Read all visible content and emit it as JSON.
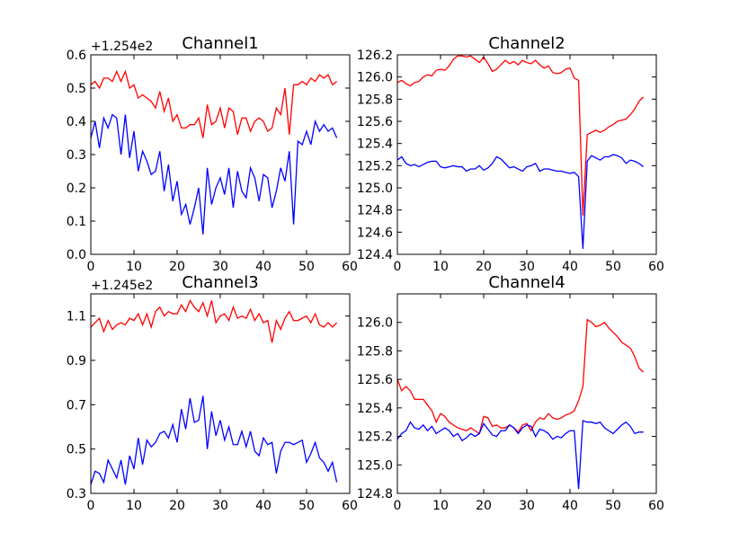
{
  "chart_data": [
    {
      "type": "line",
      "title": "Channel1",
      "offset_label": "+1.254e2",
      "xlim": [
        0,
        60
      ],
      "ylim": [
        0.0,
        0.6
      ],
      "xticks": [
        0,
        10,
        20,
        30,
        40,
        50,
        60
      ],
      "yticks": [
        0.0,
        0.1,
        0.2,
        0.3,
        0.4,
        0.5,
        0.6
      ],
      "ytick_labels": [
        "0.0",
        "0.1",
        "0.2",
        "0.3",
        "0.4",
        "0.5",
        "0.6"
      ],
      "series": [
        {
          "color": "#ff0000",
          "values": [
            0.51,
            0.52,
            0.5,
            0.53,
            0.53,
            0.52,
            0.55,
            0.52,
            0.55,
            0.5,
            0.51,
            0.47,
            0.48,
            0.47,
            0.46,
            0.44,
            0.49,
            0.43,
            0.47,
            0.4,
            0.42,
            0.38,
            0.38,
            0.39,
            0.39,
            0.41,
            0.35,
            0.45,
            0.39,
            0.4,
            0.44,
            0.38,
            0.44,
            0.43,
            0.36,
            0.41,
            0.41,
            0.37,
            0.4,
            0.41,
            0.4,
            0.37,
            0.38,
            0.44,
            0.42,
            0.5,
            0.36,
            0.51,
            0.51,
            0.52,
            0.51,
            0.53,
            0.52,
            0.54,
            0.53,
            0.54,
            0.51,
            0.52
          ]
        },
        {
          "color": "#0000ff",
          "values": [
            0.35,
            0.4,
            0.32,
            0.41,
            0.38,
            0.42,
            0.41,
            0.3,
            0.42,
            0.29,
            0.37,
            0.25,
            0.31,
            0.28,
            0.24,
            0.25,
            0.31,
            0.19,
            0.27,
            0.16,
            0.22,
            0.12,
            0.15,
            0.09,
            0.14,
            0.2,
            0.06,
            0.26,
            0.15,
            0.2,
            0.23,
            0.18,
            0.26,
            0.14,
            0.25,
            0.19,
            0.17,
            0.26,
            0.23,
            0.16,
            0.24,
            0.23,
            0.14,
            0.19,
            0.26,
            0.22,
            0.31,
            0.09,
            0.34,
            0.33,
            0.37,
            0.33,
            0.4,
            0.37,
            0.39,
            0.37,
            0.38,
            0.35
          ]
        }
      ]
    },
    {
      "type": "line",
      "title": "Channel2",
      "offset_label": "",
      "xlim": [
        0,
        60
      ],
      "ylim": [
        124.4,
        126.2
      ],
      "xticks": [
        0,
        10,
        20,
        30,
        40,
        50,
        60
      ],
      "yticks": [
        124.4,
        124.6,
        124.8,
        125.0,
        125.2,
        125.4,
        125.6,
        125.8,
        126.0,
        126.2
      ],
      "ytick_labels": [
        "124.4",
        "124.6",
        "124.8",
        "125.0",
        "125.2",
        "125.4",
        "125.6",
        "125.8",
        "126.0",
        "126.2"
      ],
      "series": [
        {
          "color": "#ff0000",
          "values": [
            125.95,
            125.97,
            125.94,
            125.92,
            125.95,
            125.96,
            126.0,
            126.02,
            126.01,
            126.06,
            126.07,
            126.06,
            126.1,
            126.16,
            126.19,
            126.19,
            126.18,
            126.19,
            126.16,
            126.13,
            126.18,
            126.12,
            126.05,
            126.07,
            126.11,
            126.15,
            126.12,
            126.14,
            126.11,
            126.15,
            126.13,
            126.12,
            126.15,
            126.11,
            126.08,
            126.1,
            126.04,
            126.03,
            126.04,
            126.07,
            126.08,
            125.99,
            125.97,
            124.75,
            125.48,
            125.5,
            125.52,
            125.5,
            125.52,
            125.55,
            125.57,
            125.6,
            125.61,
            125.62,
            125.66,
            125.71,
            125.78,
            125.82
          ]
        },
        {
          "color": "#0000ff",
          "values": [
            125.25,
            125.28,
            125.22,
            125.2,
            125.21,
            125.19,
            125.21,
            125.23,
            125.24,
            125.24,
            125.19,
            125.18,
            125.19,
            125.2,
            125.19,
            125.19,
            125.15,
            125.17,
            125.17,
            125.2,
            125.16,
            125.18,
            125.22,
            125.28,
            125.26,
            125.22,
            125.18,
            125.19,
            125.17,
            125.15,
            125.19,
            125.2,
            125.22,
            125.15,
            125.17,
            125.17,
            125.16,
            125.15,
            125.15,
            125.14,
            125.13,
            125.14,
            125.1,
            124.45,
            125.24,
            125.29,
            125.27,
            125.25,
            125.28,
            125.28,
            125.3,
            125.29,
            125.27,
            125.22,
            125.25,
            125.24,
            125.22,
            125.19
          ]
        }
      ]
    },
    {
      "type": "line",
      "title": "Channel3",
      "offset_label": "+1.245e2",
      "xlim": [
        0,
        60
      ],
      "ylim": [
        0.3,
        1.2
      ],
      "xticks": [
        0,
        10,
        20,
        30,
        40,
        50,
        60
      ],
      "yticks": [
        0.3,
        0.5,
        0.7,
        0.9,
        1.1
      ],
      "ytick_labels": [
        "0.3",
        "0.5",
        "0.7",
        "0.9",
        "1.1"
      ],
      "series": [
        {
          "color": "#ff0000",
          "values": [
            1.05,
            1.07,
            1.09,
            1.03,
            1.08,
            1.04,
            1.06,
            1.07,
            1.06,
            1.09,
            1.08,
            1.11,
            1.06,
            1.11,
            1.05,
            1.12,
            1.14,
            1.1,
            1.12,
            1.11,
            1.11,
            1.15,
            1.12,
            1.17,
            1.14,
            1.12,
            1.16,
            1.1,
            1.17,
            1.07,
            1.1,
            1.11,
            1.08,
            1.14,
            1.09,
            1.1,
            1.09,
            1.13,
            1.08,
            1.11,
            1.07,
            1.08,
            0.98,
            1.08,
            1.04,
            1.09,
            1.12,
            1.08,
            1.08,
            1.09,
            1.1,
            1.07,
            1.11,
            1.06,
            1.05,
            1.07,
            1.05,
            1.07
          ]
        },
        {
          "color": "#0000ff",
          "values": [
            0.34,
            0.4,
            0.39,
            0.35,
            0.45,
            0.41,
            0.37,
            0.45,
            0.34,
            0.47,
            0.41,
            0.55,
            0.43,
            0.54,
            0.51,
            0.53,
            0.57,
            0.58,
            0.55,
            0.61,
            0.53,
            0.68,
            0.59,
            0.73,
            0.62,
            0.63,
            0.74,
            0.5,
            0.67,
            0.56,
            0.63,
            0.54,
            0.6,
            0.52,
            0.52,
            0.58,
            0.51,
            0.58,
            0.49,
            0.47,
            0.55,
            0.52,
            0.53,
            0.39,
            0.49,
            0.53,
            0.53,
            0.52,
            0.53,
            0.54,
            0.44,
            0.48,
            0.53,
            0.46,
            0.44,
            0.4,
            0.44,
            0.35
          ]
        }
      ]
    },
    {
      "type": "line",
      "title": "Channel4",
      "offset_label": "",
      "xlim": [
        0,
        60
      ],
      "ylim": [
        124.8,
        126.2
      ],
      "xticks": [
        0,
        10,
        20,
        30,
        40,
        50,
        60
      ],
      "yticks": [
        124.8,
        125.0,
        125.2,
        125.4,
        125.6,
        125.8,
        126.0
      ],
      "ytick_labels": [
        "124.8",
        "125.0",
        "125.2",
        "125.4",
        "125.6",
        "125.8",
        "126.0"
      ],
      "series": [
        {
          "color": "#ff0000",
          "values": [
            125.6,
            125.52,
            125.55,
            125.52,
            125.46,
            125.46,
            125.46,
            125.42,
            125.38,
            125.3,
            125.36,
            125.34,
            125.3,
            125.28,
            125.26,
            125.25,
            125.24,
            125.26,
            125.24,
            125.22,
            125.34,
            125.33,
            125.27,
            125.28,
            125.26,
            125.26,
            125.28,
            125.26,
            125.23,
            125.28,
            125.29,
            125.24,
            125.3,
            125.33,
            125.32,
            125.36,
            125.33,
            125.32,
            125.33,
            125.35,
            125.36,
            125.38,
            125.45,
            125.55,
            126.02,
            126.0,
            125.97,
            125.98,
            126.0,
            125.96,
            125.93,
            125.9,
            125.86,
            125.84,
            125.82,
            125.76,
            125.68,
            125.65
          ]
        },
        {
          "color": "#0000ff",
          "values": [
            125.18,
            125.22,
            125.24,
            125.3,
            125.26,
            125.25,
            125.28,
            125.24,
            125.27,
            125.22,
            125.24,
            125.26,
            125.24,
            125.2,
            125.22,
            125.17,
            125.19,
            125.22,
            125.2,
            125.22,
            125.29,
            125.25,
            125.21,
            125.2,
            125.24,
            125.24,
            125.28,
            125.26,
            125.22,
            125.26,
            125.28,
            125.27,
            125.2,
            125.25,
            125.24,
            125.22,
            125.18,
            125.2,
            125.19,
            125.22,
            125.24,
            125.24,
            124.83,
            125.31,
            125.3,
            125.3,
            125.29,
            125.3,
            125.26,
            125.24,
            125.22,
            125.25,
            125.28,
            125.3,
            125.27,
            125.22,
            125.23,
            125.23
          ]
        }
      ]
    }
  ]
}
